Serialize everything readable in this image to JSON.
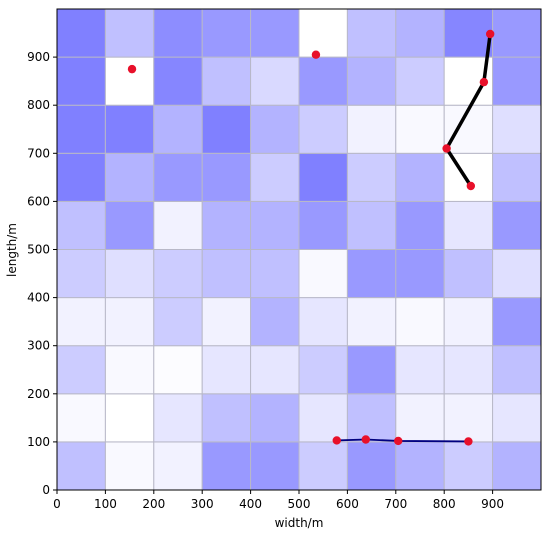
{
  "chart_data": {
    "type": "heatmap",
    "x_label": "width/m",
    "y_label": "length/m",
    "xlim": [
      0,
      1000
    ],
    "ylim": [
      0,
      1000
    ],
    "xticks": [
      0,
      100,
      200,
      300,
      400,
      500,
      600,
      700,
      800,
      900
    ],
    "yticks": [
      0,
      100,
      200,
      300,
      400,
      500,
      600,
      700,
      800,
      900
    ],
    "colormap": [
      "#ffffff",
      "#8080ff"
    ],
    "cell_border_color": "#b8b8c8",
    "cells": [
      [
        0.5,
        0.05,
        0.1,
        0.8,
        0.8,
        0.4,
        0.8,
        0.6,
        0.4,
        0.6
      ],
      [
        0.05,
        0,
        0.2,
        0.5,
        0.6,
        0.2,
        0.5,
        0.1,
        0.1,
        0.2
      ],
      [
        0.4,
        0.05,
        0.02,
        0.2,
        0.2,
        0.4,
        0.8,
        0.2,
        0.2,
        0.5
      ],
      [
        0.1,
        0.1,
        0.4,
        0.1,
        0.6,
        0.2,
        0.1,
        0.05,
        0.1,
        0.8
      ],
      [
        0.4,
        0.25,
        0.4,
        0.5,
        0.5,
        0.05,
        0.8,
        0.8,
        0.5,
        0.25
      ],
      [
        0.5,
        0.8,
        0.1,
        0.6,
        0.6,
        0.8,
        0.5,
        0.8,
        0.2,
        0.8
      ],
      [
        1,
        0.6,
        0.8,
        0.8,
        0.4,
        1,
        0.4,
        0.6,
        0,
        0.5
      ],
      [
        1,
        1,
        0.6,
        1,
        0.6,
        0.4,
        0.1,
        0.05,
        0.05,
        0.25
      ],
      [
        1,
        0,
        0.95,
        0.5,
        0.3,
        0.8,
        0.6,
        0.4,
        0,
        0.8
      ],
      [
        1,
        0.5,
        0.9,
        0.8,
        0.8,
        0,
        0.5,
        0.6,
        0.95,
        0.8
      ]
    ],
    "paths": [
      {
        "color": "#000000",
        "width": 3.5,
        "marker_color": "#e8102a",
        "x": [
          855,
          805,
          882,
          895
        ],
        "y": [
          632,
          710,
          848,
          948
        ]
      },
      {
        "color": "#000080",
        "width": 1.8,
        "marker_color": "#e8102a",
        "x": [
          578,
          638,
          705,
          850
        ],
        "y": [
          103,
          105,
          102,
          101
        ]
      }
    ],
    "points": {
      "color": "#e8102a",
      "x": [
        155,
        535
      ],
      "y": [
        875,
        905
      ]
    }
  }
}
